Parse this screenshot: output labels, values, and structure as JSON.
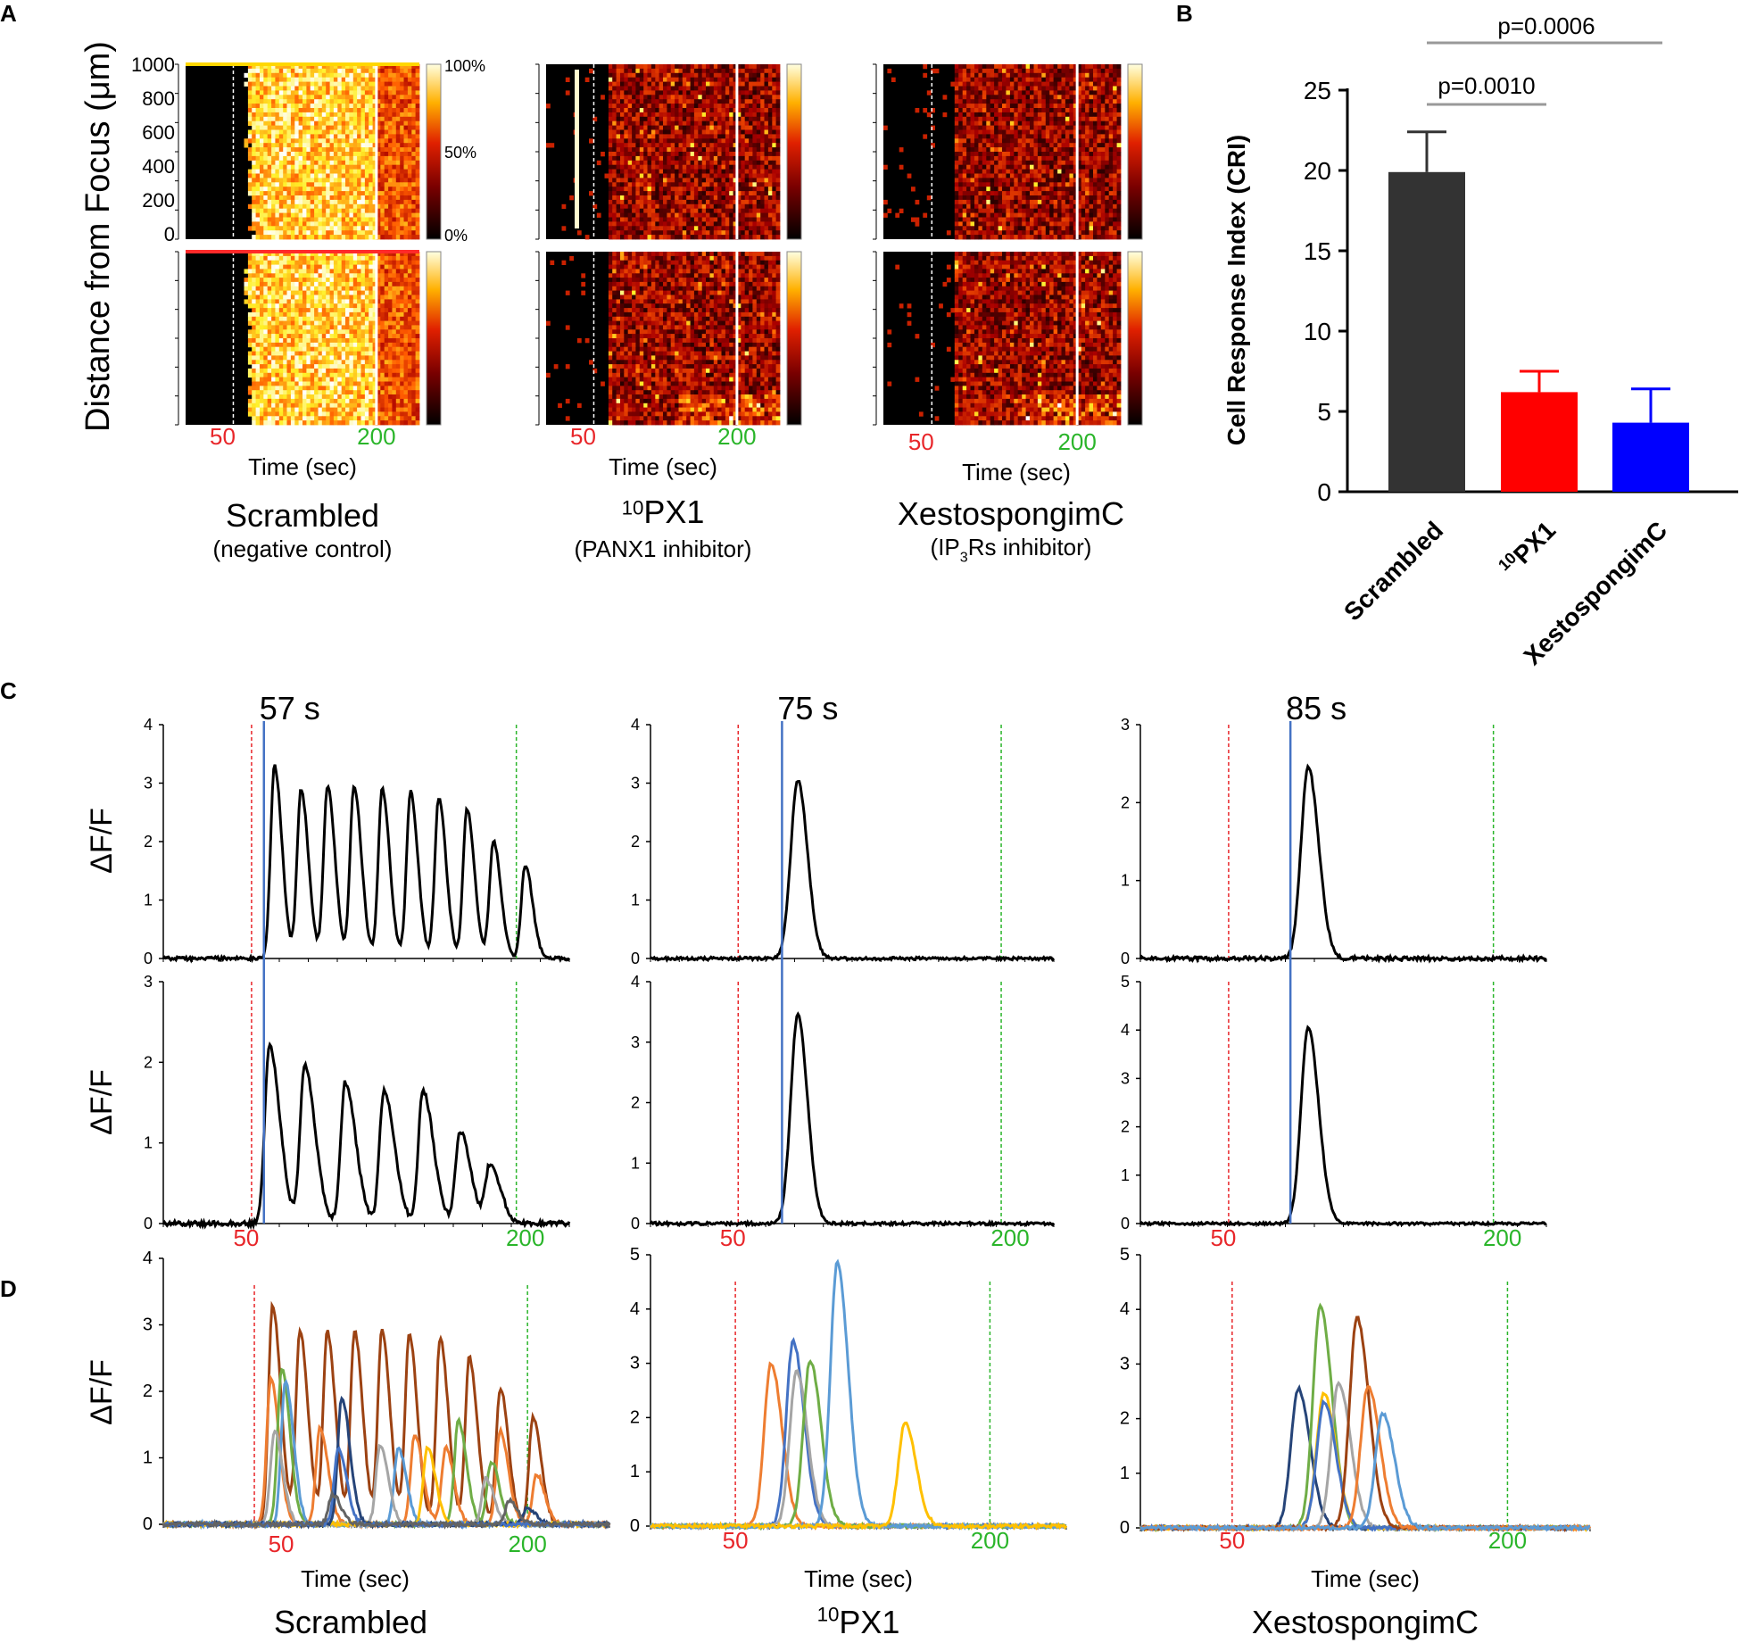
{
  "panel_letters": {
    "a": "A",
    "b": "B",
    "c": "C",
    "d": "D"
  },
  "conditions": [
    {
      "name": "Scrambled",
      "sup": "",
      "sub_pre": "(negative control)",
      "sub_sup": "",
      "sub_post": ""
    },
    {
      "name": "PX1",
      "sup": "10",
      "sub_pre": "(PANX1 inhibitor)",
      "sub_sup": "",
      "sub_post": ""
    },
    {
      "name": "XestospongimC",
      "sup": "",
      "sub_pre": "(IP",
      "sub_sup": "3",
      "sub_post": "Rs inhibitor)"
    }
  ],
  "panel_a": {
    "ylabel_pre": "Distance from Focus (",
    "ylabel_mu": "μ",
    "ylabel_post": "m)",
    "yticks": [
      "1000",
      "800",
      "600",
      "400",
      "200",
      "0"
    ],
    "colorbar_ticks": [
      "100%",
      "50%",
      "0%"
    ],
    "time_marks": [
      "50",
      "200"
    ],
    "xlabel": "Time (sec)",
    "colors": {
      "red": "#e8262a",
      "green": "#2ab52a"
    }
  },
  "chart_data": [
    {
      "type": "bar",
      "id": "B",
      "categories": [
        "Scrambled",
        "10PX1",
        "XestospongimC"
      ],
      "category_labels": [
        {
          "sup": "",
          "text": "Scrambled"
        },
        {
          "sup": "10",
          "text": "PX1"
        },
        {
          "sup": "",
          "text": "XestospongimC"
        }
      ],
      "values": [
        19.9,
        6.2,
        4.3
      ],
      "errors": [
        2.5,
        1.3,
        2.1
      ],
      "colors": [
        "#333333",
        "#ff0000",
        "#0000ff"
      ],
      "ylabel": "Cell Response Index (CRI)",
      "ylim": [
        0,
        25
      ],
      "yticks": [
        "0",
        "5",
        "10",
        "15",
        "20",
        "25"
      ],
      "annotations": [
        {
          "text": "p=0.0010",
          "from": "Scrambled",
          "to": "10PX1"
        },
        {
          "text": "p=0.0006",
          "from": "Scrambled",
          "to": "XestospongimC"
        }
      ]
    },
    {
      "type": "line",
      "id": "C",
      "ylabel": "ΔF/F",
      "marker_lines": {
        "stim_red": 50,
        "end_green": 200
      },
      "time_labels": [
        "50",
        "200"
      ],
      "columns": [
        {
          "annotation": "57 s",
          "onset": 57,
          "top": {
            "ylim": [
              0,
              4
            ],
            "yticks": [
              "0",
              "1",
              "2",
              "3",
              "4"
            ],
            "peaks": [
              [
                63,
                3.3
              ],
              [
                78,
                2.9
              ],
              [
                93,
                2.95
              ],
              [
                108,
                2.95
              ],
              [
                124,
                2.9
              ],
              [
                140,
                2.85
              ],
              [
                156,
                2.75
              ],
              [
                172,
                2.55
              ],
              [
                187,
                2.0
              ],
              [
                205,
                1.6
              ]
            ]
          },
          "bottom": {
            "ylim": [
              0,
              3
            ],
            "yticks": [
              "0",
              "1",
              "2",
              "3"
            ],
            "peaks": [
              [
                60,
                2.2
              ],
              [
                80,
                1.95
              ],
              [
                103,
                1.75
              ],
              [
                125,
                1.65
              ],
              [
                147,
                1.65
              ],
              [
                168,
                1.15
              ],
              [
                185,
                0.72
              ]
            ]
          }
        },
        {
          "annotation": "75 s",
          "onset": 75,
          "top": {
            "ylim": [
              0,
              4
            ],
            "yticks": [
              "0",
              "1",
              "2",
              "3",
              "4"
            ],
            "peaks": [
              [
                84,
                3.05
              ]
            ]
          },
          "bottom": {
            "ylim": [
              0,
              4
            ],
            "yticks": [
              "0",
              "1",
              "2",
              "3",
              "4"
            ],
            "peaks": [
              [
                84,
                3.45
              ]
            ]
          }
        },
        {
          "annotation": "85 s",
          "onset": 85,
          "top": {
            "ylim": [
              0,
              3
            ],
            "yticks": [
              "0",
              "1",
              "2",
              "3"
            ],
            "peaks": [
              [
                95,
                2.45
              ]
            ]
          },
          "bottom": {
            "ylim": [
              0,
              5
            ],
            "yticks": [
              "0",
              "1",
              "2",
              "3",
              "4",
              "5"
            ],
            "peaks": [
              [
                95,
                4.05
              ]
            ]
          }
        }
      ]
    },
    {
      "type": "line",
      "id": "D",
      "ylabel": "ΔF/F",
      "xlabel": "Time (sec)",
      "time_labels": [
        "50",
        "200"
      ],
      "panels": [
        {
          "ylim": [
            0,
            4
          ],
          "yticks": [
            "0",
            "1",
            "2",
            "3",
            "4"
          ],
          "series": [
            {
              "color": "#9c4212",
              "peaks": [
                [
                  60,
                  3.3
                ],
                [
                  75,
                  2.9
                ],
                [
                  90,
                  2.9
                ],
                [
                  105,
                  2.9
                ],
                [
                  120,
                  2.9
                ],
                [
                  135,
                  2.85
                ],
                [
                  152,
                  2.8
                ],
                [
                  168,
                  2.5
                ],
                [
                  185,
                  2.05
                ],
                [
                  203,
                  1.6
                ]
              ]
            },
            {
              "color": "#ee7d31",
              "peaks": [
                [
                  59,
                  2.2
                ],
                [
                  86,
                  1.45
                ],
                [
                  138,
                  1.35
                ],
                [
                  155,
                  1.15
                ],
                [
                  185,
                  1.4
                ],
                [
                  205,
                  0.75
                ]
              ]
            },
            {
              "color": "#6fad46",
              "peaks": [
                [
                  65,
                  2.35
                ],
                [
                  162,
                  1.55
                ],
                [
                  180,
                  0.95
                ]
              ]
            },
            {
              "color": "#5b9bd5",
              "peaks": [
                [
                  67,
                  2.15
                ],
                [
                  129,
                  1.15
                ]
              ]
            },
            {
              "color": "#a5a5a5",
              "peaks": [
                [
                  61,
                  1.4
                ],
                [
                  119,
                  1.2
                ],
                [
                  177,
                  0.7
                ]
              ]
            },
            {
              "color": "#ffc000",
              "peaks": [
                [
                  145,
                  1.15
                ]
              ]
            },
            {
              "color": "#264478",
              "peaks": [
                [
                  98,
                  1.9
                ],
                [
                  200,
                  0.25
                ]
              ]
            },
            {
              "color": "#4472c4",
              "peaks": [
                [
                  96,
                  1.15
                ]
              ]
            },
            {
              "color": "#636363",
              "peaks": [
                [
                  93,
                  0.45
                ],
                [
                  190,
                  0.35
                ]
              ]
            }
          ]
        },
        {
          "ylim": [
            0,
            5
          ],
          "yticks": [
            "0",
            "1",
            "2",
            "3",
            "4",
            "5"
          ],
          "series": [
            {
              "color": "#ee7d31",
              "peaks": [
                [
                  71,
                  3.0
                ]
              ]
            },
            {
              "color": "#4472c4",
              "peaks": [
                [
                  84,
                  3.4
                ]
              ]
            },
            {
              "color": "#a5a5a5",
              "peaks": [
                [
                  86,
                  2.85
                ]
              ]
            },
            {
              "color": "#6fad46",
              "peaks": [
                [
                  94,
                  3.05
                ]
              ]
            },
            {
              "color": "#5b9bd5",
              "peaks": [
                [
                  110,
                  4.85
                ]
              ]
            },
            {
              "color": "#ffc000",
              "peaks": [
                [
                  150,
                  1.9
                ]
              ]
            }
          ]
        },
        {
          "ylim": [
            0,
            5
          ],
          "yticks": [
            "0",
            "1",
            "2",
            "3",
            "4",
            "5"
          ],
          "series": [
            {
              "color": "#264478",
              "peaks": [
                [
                  86,
                  2.55
                ]
              ]
            },
            {
              "color": "#6fad46",
              "peaks": [
                [
                  98,
                  4.05
                ]
              ]
            },
            {
              "color": "#ffc000",
              "peaks": [
                [
                  100,
                  2.45
                ]
              ]
            },
            {
              "color": "#a5a5a5",
              "peaks": [
                [
                  108,
                  2.65
                ]
              ]
            },
            {
              "color": "#4472c4",
              "peaks": [
                [
                  100,
                  2.3
                ]
              ]
            },
            {
              "color": "#9c4212",
              "peaks": [
                [
                  118,
                  3.85
                ]
              ]
            },
            {
              "color": "#ee7d31",
              "peaks": [
                [
                  124,
                  2.6
                ]
              ]
            },
            {
              "color": "#5b9bd5",
              "peaks": [
                [
                  132,
                  2.1
                ]
              ]
            }
          ]
        }
      ]
    }
  ]
}
